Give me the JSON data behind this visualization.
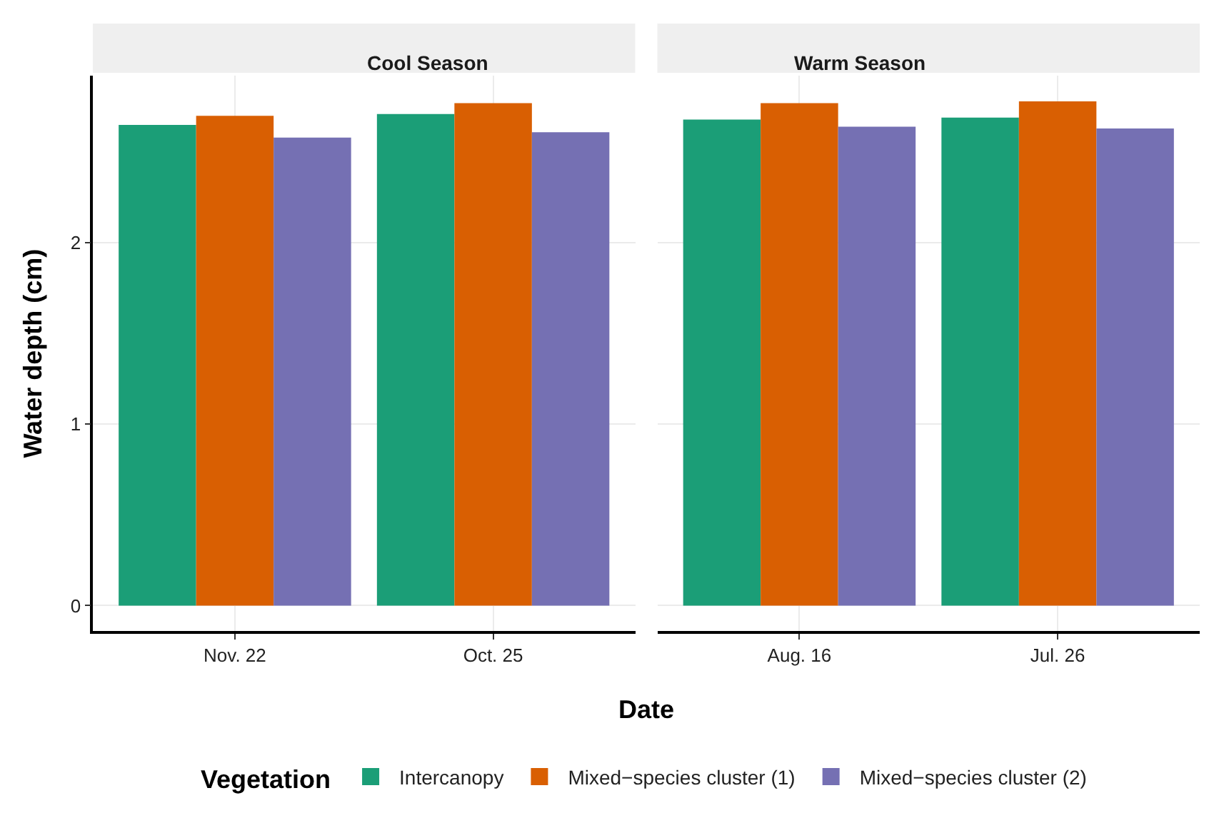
{
  "chart_data": [
    {
      "type": "bar",
      "title": "Cool Season",
      "xlabel": "Date",
      "ylabel": "Water depth (cm)",
      "legend_title": "Vegetation",
      "legend": "bottom",
      "grid": true,
      "categories": [
        "Nov. 22",
        "Oct. 25"
      ],
      "ylim": [
        -0.14,
        2.92
      ],
      "yticks": [
        0,
        1,
        2
      ],
      "series": [
        {
          "name": "Intercanopy",
          "color": "#1b9e77",
          "values": [
            2.65,
            2.71
          ]
        },
        {
          "name": "Mixed−species cluster (1)",
          "color": "#d95f02",
          "values": [
            2.7,
            2.77
          ]
        },
        {
          "name": "Mixed−species cluster (2)",
          "color": "#7570b3",
          "values": [
            2.58,
            2.61
          ]
        }
      ]
    },
    {
      "type": "bar",
      "title": "Warm Season",
      "grid": true,
      "tick_labels": "x",
      "categories": [
        "Aug. 16",
        "Jul. 26"
      ],
      "ylim": [
        -0.14,
        2.92
      ],
      "yticks": [
        0,
        1,
        2
      ],
      "series": [
        {
          "color": "#1b9e77",
          "values": [
            2.68,
            2.69
          ]
        },
        {
          "color": "#d95f02",
          "values": [
            2.77,
            2.78
          ]
        },
        {
          "color": "#7570b3",
          "values": [
            2.64,
            2.63
          ]
        }
      ]
    }
  ]
}
